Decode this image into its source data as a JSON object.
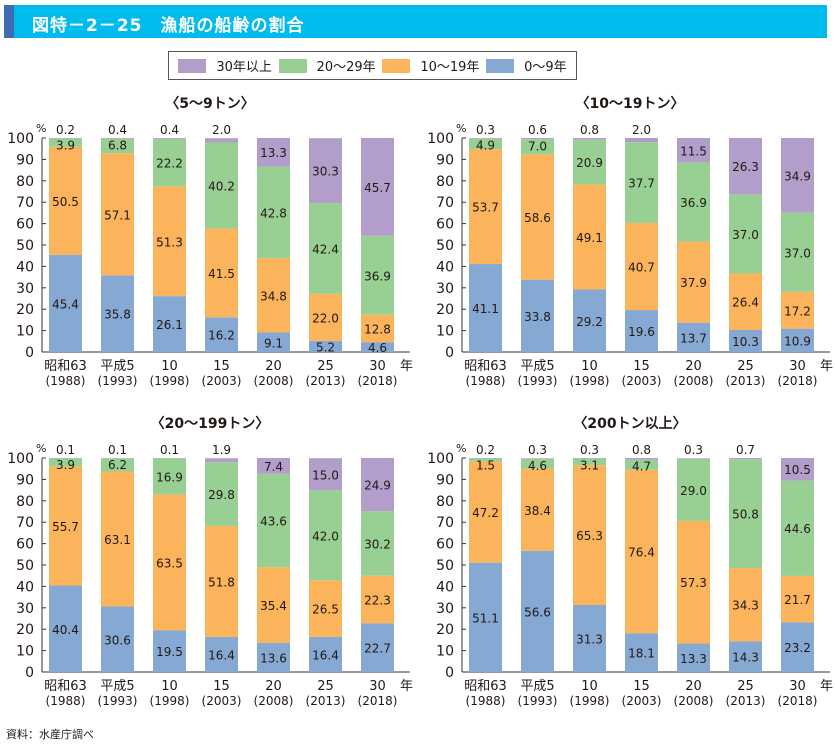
{
  "header": {
    "title": "図特－2－25　漁船の船齢の割合"
  },
  "colors": {
    "title_bg": "#00bbee",
    "title_accent": "#3d6bb4",
    "age_30_plus": "#b39ecb",
    "age_20_29": "#98d093",
    "age_10_19": "#fbb45c",
    "age_0_9": "#85a9d2"
  },
  "legend": {
    "items": [
      {
        "label": "30年以上",
        "color": "#b39ecb"
      },
      {
        "label": "20～29年",
        "color": "#98d093"
      },
      {
        "label": "10～19年",
        "color": "#fbb45c"
      },
      {
        "label": "0～9年",
        "color": "#85a9d2"
      }
    ]
  },
  "source": "資料：水産庁調べ",
  "chart_data": [
    {
      "type": "bar",
      "stacked": true,
      "title": "〈5～9トン〉",
      "ylabel": "%",
      "xlabel": "年",
      "ylim": [
        0,
        100
      ],
      "yticks": [
        0,
        10,
        20,
        30,
        40,
        50,
        60,
        70,
        80,
        90,
        100
      ],
      "categories": [
        "昭和63",
        "平成5",
        "10",
        "15",
        "20",
        "25",
        "30"
      ],
      "categories_sub": [
        "(1988)",
        "(1993)",
        "(1998)",
        "(2003)",
        "(2008)",
        "(2013)",
        "(2018)"
      ],
      "series": [
        {
          "name": "0～9年",
          "values": [
            45.4,
            35.8,
            26.1,
            16.2,
            9.1,
            5.2,
            4.6
          ]
        },
        {
          "name": "10～19年",
          "values": [
            50.5,
            57.1,
            51.3,
            41.5,
            34.8,
            22.0,
            12.8
          ]
        },
        {
          "name": "20～29年",
          "values": [
            3.9,
            6.8,
            22.2,
            40.2,
            42.8,
            42.4,
            36.9
          ]
        },
        {
          "name": "30年以上",
          "values": [
            0.2,
            0.4,
            0.4,
            2.0,
            13.3,
            30.3,
            45.7
          ]
        }
      ]
    },
    {
      "type": "bar",
      "stacked": true,
      "title": "〈10～19トン〉",
      "ylabel": "%",
      "xlabel": "年",
      "ylim": [
        0,
        100
      ],
      "yticks": [
        0,
        10,
        20,
        30,
        40,
        50,
        60,
        70,
        80,
        90,
        100
      ],
      "categories": [
        "昭和63",
        "平成5",
        "10",
        "15",
        "20",
        "25",
        "30"
      ],
      "categories_sub": [
        "(1988)",
        "(1993)",
        "(1998)",
        "(2003)",
        "(2008)",
        "(2013)",
        "(2018)"
      ],
      "series": [
        {
          "name": "0～9年",
          "values": [
            41.1,
            33.8,
            29.2,
            19.6,
            13.7,
            10.3,
            10.9
          ]
        },
        {
          "name": "10～19年",
          "values": [
            53.7,
            58.6,
            49.1,
            40.7,
            37.9,
            26.4,
            17.2
          ]
        },
        {
          "name": "20～29年",
          "values": [
            4.9,
            7.0,
            20.9,
            37.7,
            36.9,
            37.0,
            37.0
          ]
        },
        {
          "name": "30年以上",
          "values": [
            0.3,
            0.6,
            0.8,
            2.0,
            11.5,
            26.3,
            34.9
          ]
        }
      ]
    },
    {
      "type": "bar",
      "stacked": true,
      "title": "〈20～199トン〉",
      "ylabel": "%",
      "xlabel": "年",
      "ylim": [
        0,
        100
      ],
      "yticks": [
        0,
        10,
        20,
        30,
        40,
        50,
        60,
        70,
        80,
        90,
        100
      ],
      "categories": [
        "昭和63",
        "平成5",
        "10",
        "15",
        "20",
        "25",
        "30"
      ],
      "categories_sub": [
        "(1988)",
        "(1993)",
        "(1998)",
        "(2003)",
        "(2008)",
        "(2013)",
        "(2018)"
      ],
      "series": [
        {
          "name": "0～9年",
          "values": [
            40.4,
            30.6,
            19.5,
            16.4,
            13.6,
            16.4,
            22.7
          ]
        },
        {
          "name": "10～19年",
          "values": [
            55.7,
            63.1,
            63.5,
            51.8,
            35.4,
            26.5,
            22.3
          ]
        },
        {
          "name": "20～29年",
          "values": [
            3.9,
            6.2,
            16.9,
            29.8,
            43.6,
            42.0,
            30.2
          ]
        },
        {
          "name": "30年以上",
          "values": [
            0.1,
            0.1,
            0.1,
            1.9,
            7.4,
            15.0,
            24.9
          ]
        }
      ]
    },
    {
      "type": "bar",
      "stacked": true,
      "title": "〈200トン以上〉",
      "ylabel": "%",
      "xlabel": "年",
      "ylim": [
        0,
        100
      ],
      "yticks": [
        0,
        10,
        20,
        30,
        40,
        50,
        60,
        70,
        80,
        90,
        100
      ],
      "categories": [
        "昭和63",
        "平成5",
        "10",
        "15",
        "20",
        "25",
        "30"
      ],
      "categories_sub": [
        "(1988)",
        "(1993)",
        "(1998)",
        "(2003)",
        "(2008)",
        "(2013)",
        "(2018)"
      ],
      "series": [
        {
          "name": "0～9年",
          "values": [
            51.1,
            56.6,
            31.3,
            18.1,
            13.3,
            14.3,
            23.2
          ]
        },
        {
          "name": "10～19年",
          "values": [
            47.2,
            38.4,
            65.3,
            76.4,
            57.3,
            34.3,
            21.7
          ]
        },
        {
          "name": "20～29年",
          "values": [
            1.5,
            4.6,
            3.1,
            4.7,
            29.0,
            50.8,
            44.6
          ]
        },
        {
          "name": "30年以上",
          "values": [
            0.2,
            0.3,
            0.3,
            0.8,
            0.3,
            0.7,
            10.5
          ]
        }
      ]
    }
  ]
}
